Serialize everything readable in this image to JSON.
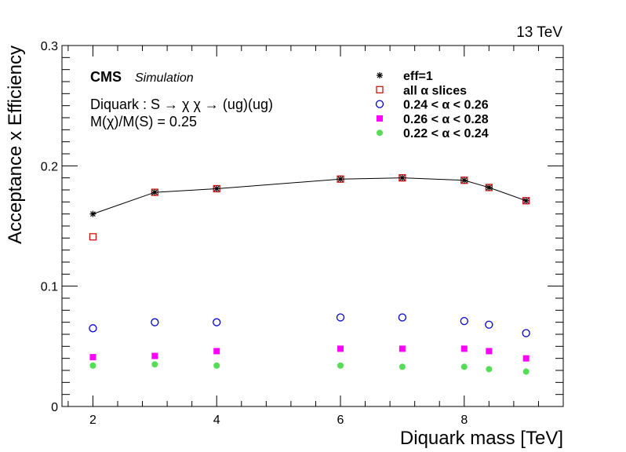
{
  "chart_data": {
    "type": "scatter",
    "energy_label": "13 TeV",
    "experiment": "CMS",
    "experiment_sub": "Simulation",
    "annotation_line1": "Diquark : S → χ χ  → (ug)(ug)",
    "annotation_line2": "M(χ)/M(S) = 0.25",
    "xlabel": "Diquark mass [TeV]",
    "ylabel": "Acceptance x Efficiency",
    "xlim": [
      1.5,
      9.6
    ],
    "ylim": [
      0,
      0.3
    ],
    "xticks": [
      2,
      4,
      6,
      8
    ],
    "yticks": [
      0,
      0.1,
      0.2,
      0.3
    ],
    "ytick_labels": [
      "0",
      "0.1",
      "0.2",
      "0.3"
    ],
    "legend_position": "top-right",
    "series": [
      {
        "name": "eff=1",
        "marker": "asterisk",
        "color": "#000000",
        "line": true,
        "x": [
          2,
          3,
          4,
          6,
          7,
          8,
          8.4,
          9
        ],
        "y": [
          0.16,
          0.178,
          0.181,
          0.189,
          0.19,
          0.188,
          0.182,
          0.171
        ]
      },
      {
        "name": "all α slices",
        "marker": "open-square",
        "color": "#cc0000",
        "line": false,
        "x": [
          2,
          3,
          4,
          6,
          7,
          8,
          8.4,
          9
        ],
        "y": [
          0.141,
          0.178,
          0.181,
          0.189,
          0.19,
          0.188,
          0.182,
          0.171
        ]
      },
      {
        "name": "0.24 < α < 0.26",
        "marker": "open-circle",
        "color": "#0000cc",
        "line": false,
        "x": [
          2,
          3,
          4,
          6,
          7,
          8,
          8.4,
          9
        ],
        "y": [
          0.065,
          0.07,
          0.07,
          0.074,
          0.074,
          0.071,
          0.068,
          0.061
        ]
      },
      {
        "name": "0.26 < α < 0.28",
        "marker": "filled-square",
        "color": "#ff00ff",
        "line": false,
        "x": [
          2,
          3,
          4,
          6,
          7,
          8,
          8.4,
          9
        ],
        "y": [
          0.041,
          0.042,
          0.046,
          0.048,
          0.048,
          0.048,
          0.046,
          0.04
        ]
      },
      {
        "name": "0.22 < α < 0.24",
        "marker": "filled-circle",
        "color": "#55dd55",
        "line": false,
        "x": [
          2,
          3,
          4,
          6,
          7,
          8,
          8.4,
          9
        ],
        "y": [
          0.034,
          0.035,
          0.034,
          0.034,
          0.033,
          0.033,
          0.031,
          0.029
        ]
      }
    ]
  }
}
